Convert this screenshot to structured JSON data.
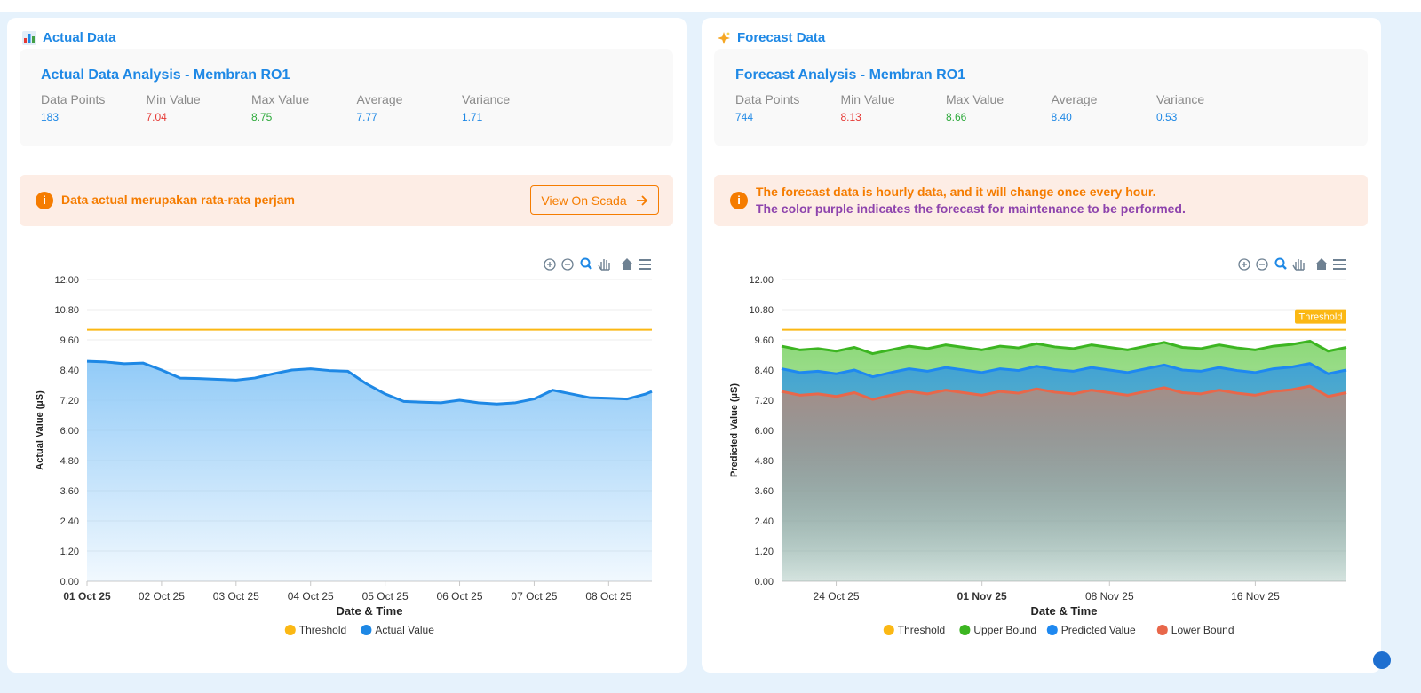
{
  "panels": [
    {
      "title": "Actual Data",
      "stats_title": "Actual Data Analysis - Membran RO1",
      "stats": [
        {
          "label": "Data Points",
          "value": "183"
        },
        {
          "label": "Min Value",
          "value": "7.04"
        },
        {
          "label": "Max Value",
          "value": "8.75"
        },
        {
          "label": "Average",
          "value": "7.77"
        },
        {
          "label": "Variance",
          "value": "1.71"
        }
      ],
      "alert": [
        "Data actual merupakan rata-rata perjam"
      ],
      "button": "View On Scada"
    },
    {
      "title": "Forecast Data",
      "stats_title": "Forecast Analysis - Membran RO1",
      "stats": [
        {
          "label": "Data Points",
          "value": "744"
        },
        {
          "label": "Min Value",
          "value": "8.13"
        },
        {
          "label": "Max Value",
          "value": "8.66"
        },
        {
          "label": "Average",
          "value": "8.40"
        },
        {
          "label": "Variance",
          "value": "0.53"
        }
      ],
      "alert": [
        "The forecast data is hourly data, and it will change once every hour.",
        "The color purple indicates the forecast for maintenance to be performed."
      ]
    }
  ],
  "chart_data": [
    {
      "type": "area",
      "x_label": "Date & Time",
      "y_label": "Actual Value (µS)",
      "grid": true,
      "legend": "bottom",
      "x": [
        0,
        0.25,
        0.5,
        0.75,
        1,
        1.25,
        1.5,
        1.75,
        2,
        2.25,
        2.5,
        2.75,
        3,
        3.25,
        3.5,
        3.75,
        4,
        4.25,
        4.5,
        4.75,
        5,
        5.25,
        5.5,
        5.75,
        6,
        6.25,
        6.5,
        6.75,
        7,
        7.25,
        7.5,
        7.58
      ],
      "xlim": [
        0,
        7.58
      ],
      "xticks": [
        {
          "value": 0,
          "label": "01 Oct 25"
        },
        {
          "value": 1,
          "label": "02 Oct 25"
        },
        {
          "value": 2,
          "label": "03 Oct 25"
        },
        {
          "value": 3,
          "label": "04 Oct 25"
        },
        {
          "value": 4,
          "label": "05 Oct 25"
        },
        {
          "value": 5,
          "label": "06 Oct 25"
        },
        {
          "value": 6,
          "label": "07 Oct 25"
        },
        {
          "value": 7,
          "label": "08 Oct 25"
        }
      ],
      "ylim": [
        0,
        12
      ],
      "yticks": [
        {
          "value": 0,
          "label": "0.00"
        },
        {
          "value": 1.2,
          "label": "1.20"
        },
        {
          "value": 2.4,
          "label": "2.40"
        },
        {
          "value": 3.6,
          "label": "3.60"
        },
        {
          "value": 4.8,
          "label": "4.80"
        },
        {
          "value": 6,
          "label": "6.00"
        },
        {
          "value": 7.2,
          "label": "7.20"
        },
        {
          "value": 8.4,
          "label": "8.40"
        },
        {
          "value": 9.6,
          "label": "9.60"
        },
        {
          "value": 10.8,
          "label": "10.80"
        },
        {
          "value": 12,
          "label": "12.00"
        }
      ],
      "series": [
        {
          "name": "Threshold",
          "color": "#fbb814",
          "x": [
            0,
            7.58
          ],
          "values": [
            10,
            10
          ]
        },
        {
          "name": "Actual Value",
          "color": "#1e88e5",
          "fill": "#8cc8f7",
          "values": [
            8.75,
            8.72,
            8.65,
            8.68,
            8.4,
            8.08,
            8.06,
            8.03,
            8.0,
            8.08,
            8.25,
            8.4,
            8.45,
            8.38,
            8.35,
            7.85,
            7.45,
            7.15,
            7.12,
            7.1,
            7.2,
            7.1,
            7.05,
            7.1,
            7.25,
            7.6,
            7.45,
            7.3,
            7.28,
            7.25,
            7.45,
            7.55
          ]
        }
      ]
    },
    {
      "type": "area",
      "x_label": "Date & Time",
      "y_label": "Predicted Value (µS)",
      "grid": true,
      "legend": "bottom",
      "threshold_tag": true,
      "x": [
        0,
        1,
        2,
        3,
        4,
        5,
        6,
        7,
        8,
        9,
        10,
        11,
        12,
        13,
        14,
        15,
        16,
        17,
        18,
        19,
        20,
        21,
        22,
        23,
        24,
        25,
        26,
        27,
        28,
        29,
        30,
        31
      ],
      "xlim": [
        0,
        31
      ],
      "xticks": [
        {
          "value": 3,
          "label": "24 Oct 25"
        },
        {
          "value": 11,
          "label": "01 Nov 25"
        },
        {
          "value": 18,
          "label": "08 Nov 25"
        },
        {
          "value": 26,
          "label": "16 Nov 25"
        }
      ],
      "ylim": [
        0,
        12
      ],
      "yticks": [
        {
          "value": 0,
          "label": "0.00"
        },
        {
          "value": 1.2,
          "label": "1.20"
        },
        {
          "value": 2.4,
          "label": "2.40"
        },
        {
          "value": 3.6,
          "label": "3.60"
        },
        {
          "value": 4.8,
          "label": "4.80"
        },
        {
          "value": 6,
          "label": "6.00"
        },
        {
          "value": 7.2,
          "label": "7.20"
        },
        {
          "value": 8.4,
          "label": "8.40"
        },
        {
          "value": 9.6,
          "label": "9.60"
        },
        {
          "value": 10.8,
          "label": "10.80"
        },
        {
          "value": 12,
          "label": "12.00"
        }
      ],
      "series": [
        {
          "name": "Threshold",
          "color": "#fbb814",
          "x": [
            0,
            31
          ],
          "values": [
            10,
            10
          ]
        },
        {
          "name": "Upper Bound",
          "color": "#3cb521",
          "fill": "#86d672",
          "values": [
            9.35,
            9.2,
            9.25,
            9.15,
            9.3,
            9.05,
            9.2,
            9.35,
            9.25,
            9.4,
            9.3,
            9.2,
            9.35,
            9.28,
            9.45,
            9.32,
            9.25,
            9.4,
            9.3,
            9.2,
            9.35,
            9.5,
            9.3,
            9.25,
            9.4,
            9.28,
            9.2,
            9.35,
            9.42,
            9.55,
            9.15,
            9.3
          ]
        },
        {
          "name": "Predicted Value",
          "color": "#1e88f0",
          "fill": "#3d9fd9",
          "values": [
            8.45,
            8.3,
            8.35,
            8.25,
            8.4,
            8.13,
            8.3,
            8.45,
            8.35,
            8.5,
            8.4,
            8.3,
            8.45,
            8.38,
            8.55,
            8.42,
            8.35,
            8.5,
            8.4,
            8.3,
            8.45,
            8.6,
            8.4,
            8.35,
            8.5,
            8.38,
            8.3,
            8.45,
            8.52,
            8.66,
            8.25,
            8.4
          ]
        },
        {
          "name": "Lower Bound",
          "color": "#e8674a",
          "fill": "#a98d84",
          "values": [
            7.55,
            7.4,
            7.45,
            7.35,
            7.5,
            7.23,
            7.4,
            7.55,
            7.45,
            7.6,
            7.5,
            7.4,
            7.55,
            7.48,
            7.65,
            7.52,
            7.45,
            7.6,
            7.5,
            7.4,
            7.55,
            7.7,
            7.5,
            7.45,
            7.6,
            7.48,
            7.4,
            7.55,
            7.62,
            7.76,
            7.35,
            7.5
          ]
        }
      ]
    }
  ]
}
